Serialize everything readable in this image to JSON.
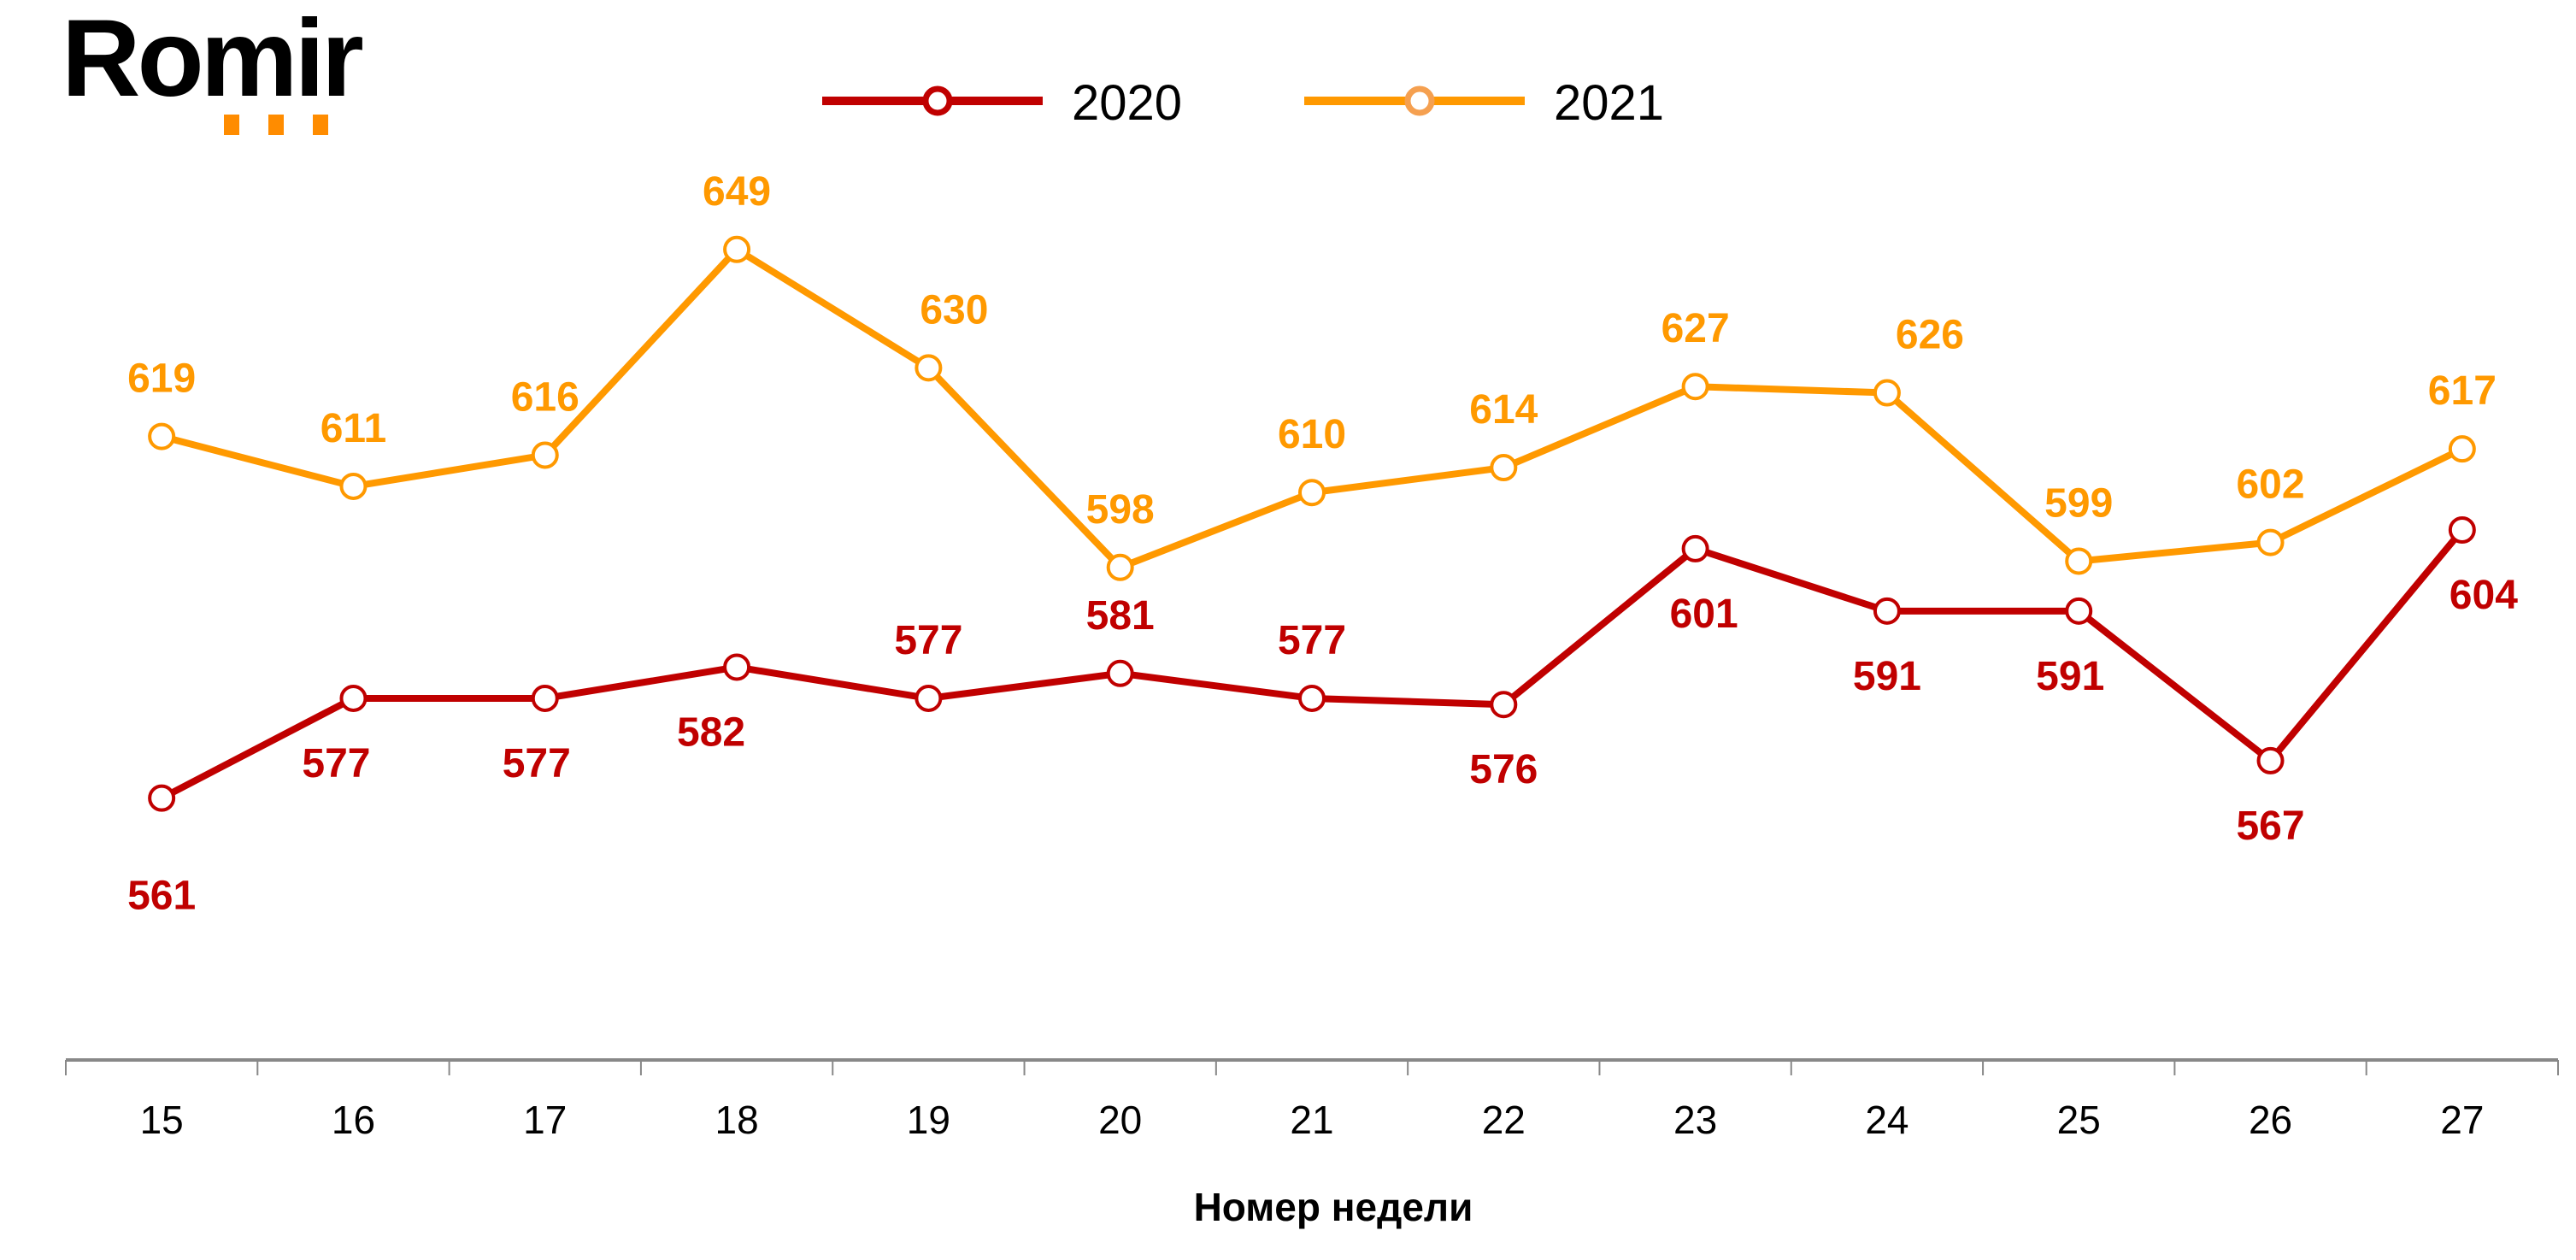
{
  "logo": {
    "text": "Romir",
    "accent_color": "#FF8C00"
  },
  "chart_data": {
    "type": "line",
    "title": "",
    "xlabel": "Номер недели",
    "ylabel": "",
    "categories": [
      "15",
      "16",
      "17",
      "18",
      "19",
      "20",
      "21",
      "22",
      "23",
      "24",
      "25",
      "26",
      "27"
    ],
    "series": [
      {
        "name": "2020",
        "color": "#C00000",
        "marker": "open-circle",
        "values": [
          561,
          577,
          577,
          582,
          577,
          581,
          577,
          576,
          601,
          591,
          591,
          567,
          604
        ]
      },
      {
        "name": "2021",
        "color": "#FF9900",
        "marker": "open-circle",
        "values": [
          619,
          611,
          616,
          649,
          630,
          598,
          610,
          614,
          627,
          626,
          599,
          602,
          617
        ]
      }
    ],
    "ylim": [
      519,
      689
    ],
    "grid": false,
    "y_axis_visible": false,
    "data_labels": true,
    "legend": {
      "placement": "top-center",
      "entries": [
        "2020",
        "2021"
      ]
    }
  }
}
